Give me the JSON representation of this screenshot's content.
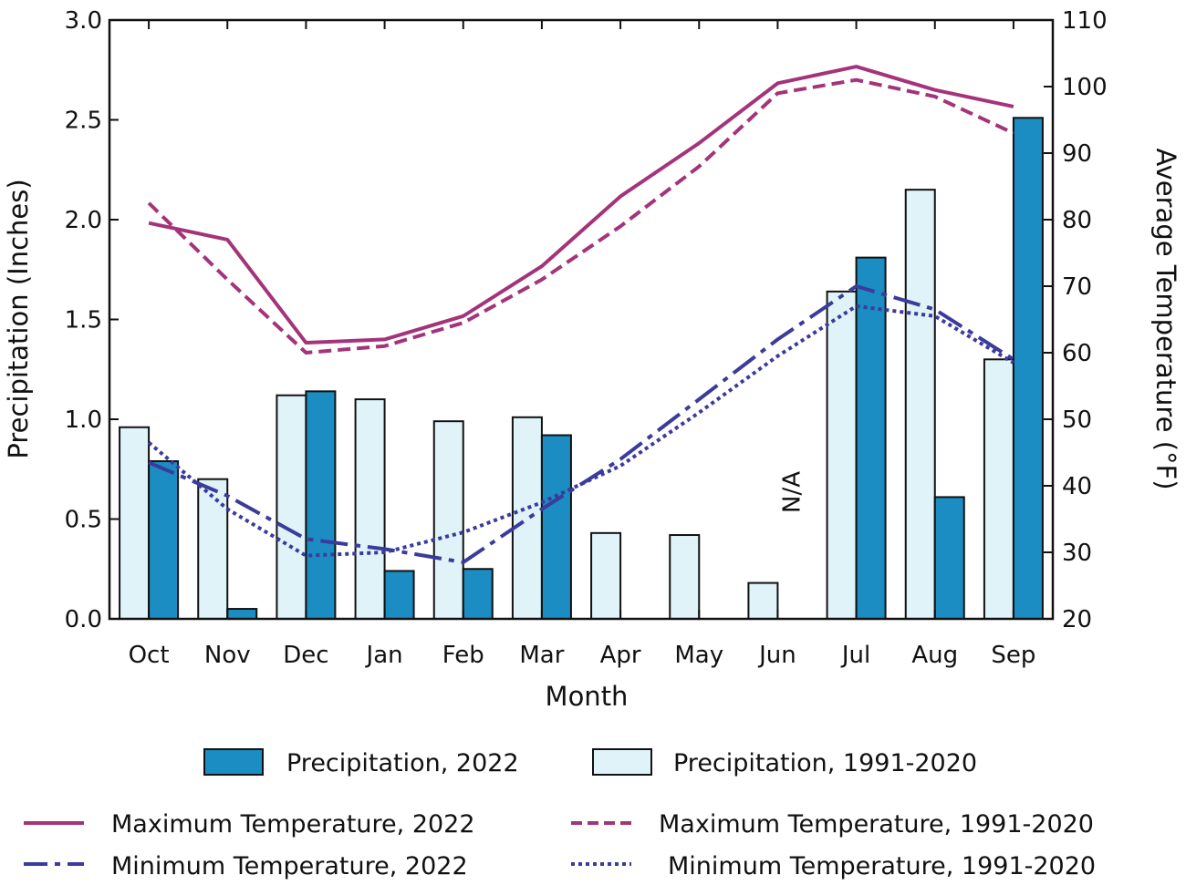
{
  "chart_data": {
    "type": "bar+line",
    "categories": [
      "Oct",
      "Nov",
      "Dec",
      "Jan",
      "Feb",
      "Mar",
      "Apr",
      "May",
      "Jun",
      "Jul",
      "Aug",
      "Sep"
    ],
    "xlabel": "Month",
    "ylabel_left": "Precipitation (Inches)",
    "ylabel_right": "Average Temperature (°F)",
    "ylim_left": [
      0,
      3
    ],
    "ylim_right": [
      20,
      110
    ],
    "yticks_left": [
      "0.0",
      "0.5",
      "1.0",
      "1.5",
      "2.0",
      "2.5",
      "3.0"
    ],
    "yticks_right": [
      "20",
      "30",
      "40",
      "50",
      "60",
      "70",
      "80",
      "90",
      "100",
      "110"
    ],
    "bars": [
      {
        "name": "Precipitation, 1991-2020",
        "color": "#E0F3F8",
        "values": [
          0.96,
          0.7,
          1.12,
          1.1,
          0.99,
          1.01,
          0.43,
          0.42,
          0.18,
          1.64,
          2.15,
          1.3
        ]
      },
      {
        "name": "Precipitation, 2022",
        "color": "#1B8DC2",
        "values": [
          0.79,
          0.05,
          1.14,
          0.24,
          0.25,
          0.92,
          null,
          null,
          null,
          1.81,
          0.61,
          2.51
        ]
      }
    ],
    "lines": [
      {
        "name": "Maximum Temperature, 2022",
        "color": "#A4347A",
        "style": "solid",
        "values": [
          79.5,
          77.0,
          61.5,
          62.0,
          65.5,
          73.0,
          83.5,
          91.5,
          100.5,
          103.0,
          99.5,
          97.0
        ]
      },
      {
        "name": "Maximum Temperature, 1991-2020",
        "color": "#A4347A",
        "style": "dashed",
        "values": [
          82.5,
          71.0,
          60.0,
          61.0,
          64.5,
          71.0,
          79.0,
          88.0,
          99.0,
          101.0,
          98.5,
          93.0
        ]
      },
      {
        "name": "Minimum Temperature, 2022",
        "color": "#3B3B9C",
        "style": "longdash",
        "values": [
          43.5,
          38.5,
          32.0,
          30.5,
          28.5,
          36.5,
          44.0,
          53.0,
          62.0,
          70.0,
          66.5,
          59.0
        ]
      },
      {
        "name": "Minimum Temperature, 1991-2020",
        "color": "#3B3B9C",
        "style": "dotted",
        "values": [
          46.5,
          36.5,
          29.5,
          30.0,
          33.0,
          37.5,
          43.0,
          51.0,
          59.5,
          67.0,
          65.5,
          58.5
        ]
      }
    ],
    "annotations": [
      {
        "text": "N/A",
        "category": "Jun"
      }
    ],
    "legend": {
      "precip_2022": "Precipitation, 2022",
      "precip_normal": "Precipitation, 1991-2020",
      "max_2022": "Maximum Temperature, 2022",
      "max_normal": "Maximum Temperature, 1991-2020",
      "min_2022": "Minimum Temperature, 2022",
      "min_normal": "Minimum Temperature, 1991-2020"
    }
  }
}
